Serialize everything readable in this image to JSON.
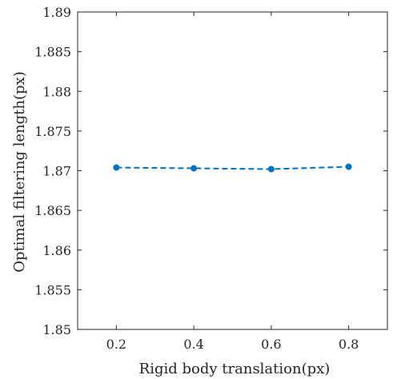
{
  "chart_data": {
    "type": "line",
    "title": "",
    "xlabel": "Rigid body translation(px)",
    "ylabel": "Optimal filtering length(px)",
    "xlim": [
      0.1,
      0.9
    ],
    "ylim": [
      1.85,
      1.89
    ],
    "x_ticks": [
      "0.2",
      "0.4",
      "0.6",
      "0.8"
    ],
    "x_tick_values": [
      0.2,
      0.4,
      0.6,
      0.8
    ],
    "y_ticks": [
      "1.85",
      "1.855",
      "1.86",
      "1.865",
      "1.87",
      "1.875",
      "1.88",
      "1.885",
      "1.89"
    ],
    "y_tick_values": [
      1.85,
      1.855,
      1.86,
      1.865,
      1.87,
      1.875,
      1.88,
      1.885,
      1.89
    ],
    "grid": false,
    "series": [
      {
        "x": [
          0.2,
          0.4,
          0.6,
          0.8
        ],
        "y": [
          1.8704,
          1.8703,
          1.8702,
          1.8705
        ],
        "color": "#0072BD",
        "line_style": "dashed",
        "marker": "circle"
      }
    ]
  }
}
